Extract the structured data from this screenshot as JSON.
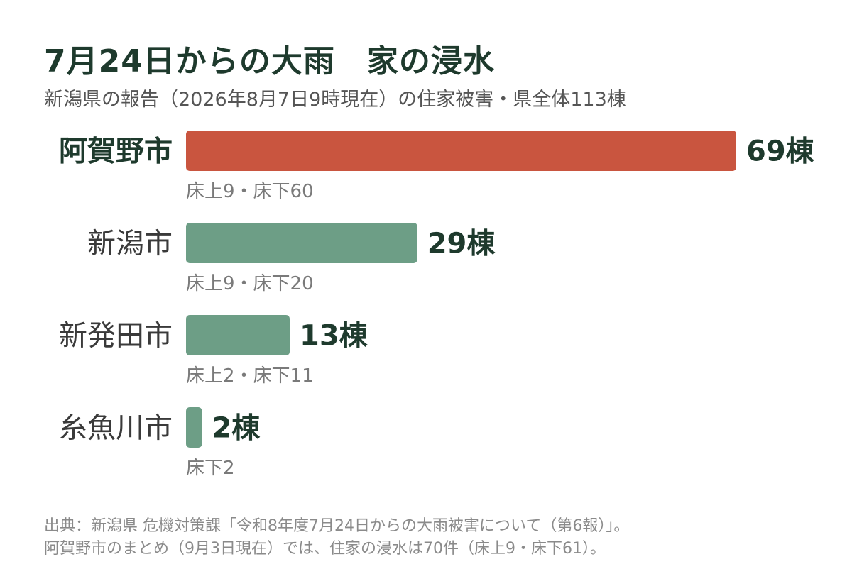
{
  "header": {
    "title": "7月24日からの大雨　家の浸水",
    "subtitle": "新潟県の報告（2026年8月7日9時現在）の住家被害・県全体113棟"
  },
  "chart_data": {
    "type": "bar",
    "orientation": "horizontal",
    "categories": [
      "阿賀野市",
      "新潟市",
      "新発田市",
      "糸魚川市"
    ],
    "values": [
      69,
      29,
      13,
      2
    ],
    "value_labels": [
      "69棟",
      "29棟",
      "13棟",
      "2棟"
    ],
    "breakdown_labels": [
      "床上9・床下60",
      "床上9・床下20",
      "床上2・床下11",
      "床下2"
    ],
    "highlight_index": 0,
    "colors": {
      "highlight": "#c9553f",
      "default": "#6d9e86"
    },
    "xlim": [
      0,
      69
    ],
    "grid": false
  },
  "footer": {
    "source_line1": "出典：新潟県 危機対策課「令和8年度7月24日からの大雨被害について（第6報）」。",
    "source_line2": "阿賀野市のまとめ（9月3日現在）では、住家の浸水は70件（床上9・床下61）。"
  }
}
